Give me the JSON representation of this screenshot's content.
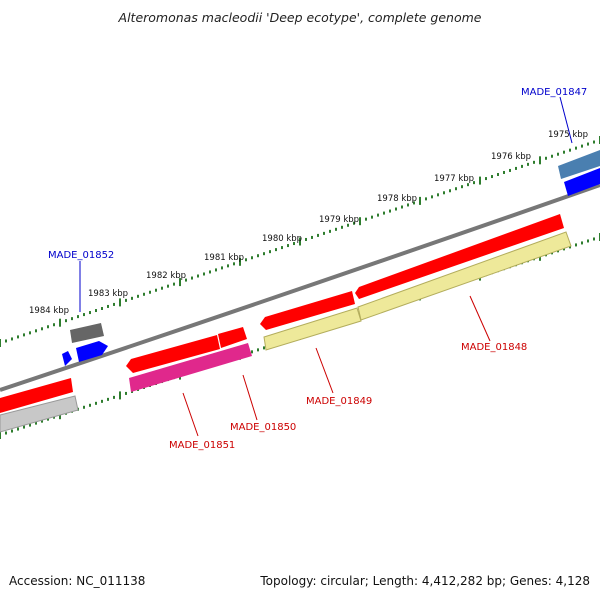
{
  "title": "Alteromonas macleodii 'Deep ecotype', complete genome",
  "footer": {
    "accession": "Accession: NC_011138",
    "info": "Topology: circular; Length: 4,412,282 bp; Genes: 4,128"
  },
  "tick_labels": [
    "1975 kbp",
    "1976 kbp",
    "1977 kbp",
    "1978 kbp",
    "1979 kbp",
    "1980 kbp",
    "1981 kbp",
    "1982 kbp",
    "1983 kbp",
    "1984 kbp"
  ],
  "gene_labels": [
    "MADE_01847",
    "MADE_01848",
    "MADE_01849",
    "MADE_01850",
    "MADE_01851",
    "MADE_01852"
  ],
  "colors": {
    "backbone": "#808080",
    "tick": "#2e7d2e",
    "cds_red": "#ff0000",
    "pseudo_yellow": "#eee99a",
    "magenta": "#e0288c",
    "grey": "#bdbdbd",
    "dark_grey": "#666666",
    "blue": "#0000ff",
    "steel_blue": "#4a7fb0",
    "label_red": "#cc0000",
    "label_blue": "#0000cc"
  }
}
